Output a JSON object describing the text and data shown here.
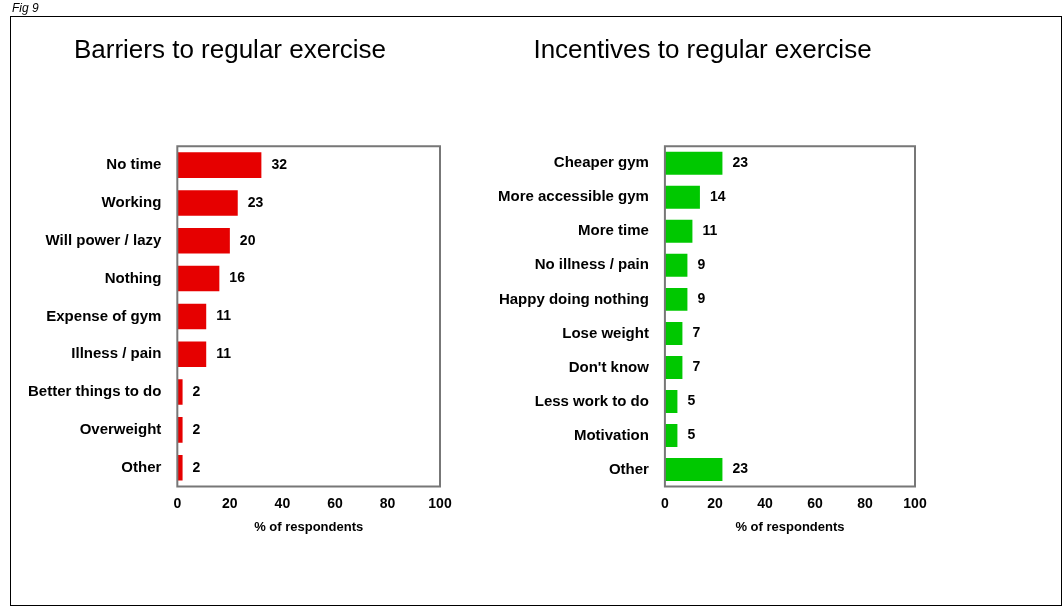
{
  "chart_data": [
    {
      "type": "bar",
      "orientation": "horizontal",
      "title": "Barriers to regular exercise",
      "xlabel": "% of respondents",
      "categories": [
        "No time",
        "Working",
        "Will power / lazy",
        "Nothing",
        "Expense of gym",
        "Illness / pain",
        "Better things to do",
        "Overweight",
        "Other"
      ],
      "values": [
        32,
        23,
        20,
        16,
        11,
        11,
        2,
        2,
        2
      ],
      "color": "#e60000",
      "xlim": [
        0,
        100
      ],
      "xticks": [
        0,
        20,
        40,
        60,
        80,
        100
      ],
      "grid": false,
      "data_labels": true,
      "annotations": [
        "Fig 9"
      ]
    },
    {
      "type": "bar",
      "orientation": "horizontal",
      "title": "Incentives to regular exercise",
      "xlabel": "% of respondents",
      "categories": [
        "Cheaper gym",
        "More accessible gym",
        "More time",
        "No illness / pain",
        "Happy doing nothing",
        "Lose weight",
        "Don't know",
        "Less work to do",
        "Motivation",
        "Other"
      ],
      "values": [
        23,
        14,
        11,
        9,
        9,
        7,
        7,
        5,
        5,
        23
      ],
      "color": "#00c800",
      "xlim": [
        0,
        100
      ],
      "xticks": [
        0,
        20,
        40,
        60,
        80,
        100
      ],
      "grid": false,
      "data_labels": true
    }
  ]
}
